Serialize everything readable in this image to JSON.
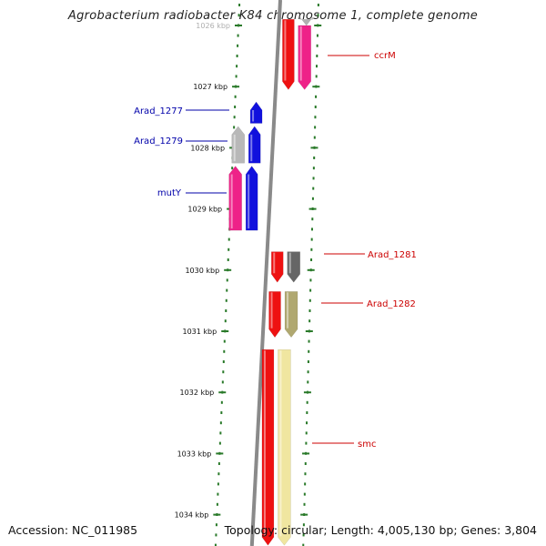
{
  "title": "Agrobacterium radiobacter K84 chromosome 1, complete genome",
  "footer": {
    "accession": "Accession: NC_011985",
    "summary": "Topology: circular; Length: 4,005,130 bp; Genes: 3,804"
  },
  "colors": {
    "scale_tick": "#2a7a2a",
    "backbone": "#8a8a8a",
    "label_blue": "#0000aa",
    "label_red": "#cc0000"
  },
  "scale": {
    "unit": "kbp",
    "ticks": [
      "1026 kbp",
      "1027 kbp",
      "1028 kbp",
      "1029 kbp",
      "1030 kbp",
      "1031 kbp",
      "1032 kbp",
      "1033 kbp",
      "1034 kbp"
    ]
  },
  "genes": [
    {
      "name": "ccrM",
      "strand": "reverse",
      "color": "#ee1111",
      "track": "r1",
      "start_kbp": 1025.9,
      "end_kbp": 1027.05
    },
    {
      "name": "",
      "strand": "reverse",
      "color": "#b0b0b0",
      "track": "r2",
      "start_kbp": 1025.9,
      "end_kbp": 1026.0
    },
    {
      "name": "",
      "strand": "reverse",
      "color": "#ee2288",
      "track": "r2",
      "start_kbp": 1026.0,
      "end_kbp": 1027.05
    },
    {
      "name": "Arad_1277",
      "strand": "forward",
      "color": "#1111dd",
      "track": "f1",
      "start_kbp": 1027.25,
      "end_kbp": 1027.6
    },
    {
      "name": "Arad_1279",
      "strand": "forward",
      "color": "#1111dd",
      "track": "f1",
      "start_kbp": 1027.65,
      "end_kbp": 1028.25
    },
    {
      "name": "",
      "strand": "forward",
      "color": "#b8b8b8",
      "track": "f2",
      "start_kbp": 1027.65,
      "end_kbp": 1028.25
    },
    {
      "name": "mutY",
      "strand": "forward",
      "color": "#1111dd",
      "track": "f1",
      "start_kbp": 1028.3,
      "end_kbp": 1029.35
    },
    {
      "name": "",
      "strand": "forward",
      "color": "#ee2288",
      "track": "f2",
      "start_kbp": 1028.3,
      "end_kbp": 1029.35
    },
    {
      "name": "Arad_1281",
      "strand": "reverse",
      "color": "#ee1111",
      "track": "r1",
      "start_kbp": 1029.7,
      "end_kbp": 1030.2
    },
    {
      "name": "",
      "strand": "reverse",
      "color": "#666666",
      "track": "r2",
      "start_kbp": 1029.7,
      "end_kbp": 1030.2
    },
    {
      "name": "Arad_1282",
      "strand": "reverse",
      "color": "#ee1111",
      "track": "r1",
      "start_kbp": 1030.35,
      "end_kbp": 1031.1
    },
    {
      "name": "",
      "strand": "reverse",
      "color": "#b0a870",
      "track": "r2",
      "start_kbp": 1030.35,
      "end_kbp": 1031.1
    },
    {
      "name": "smc",
      "strand": "reverse",
      "color": "#ee1111",
      "track": "r1",
      "start_kbp": 1031.3,
      "end_kbp": 1034.5
    },
    {
      "name": "",
      "strand": "reverse",
      "color": "#f0e6a0",
      "track": "r2",
      "start_kbp": 1031.3,
      "end_kbp": 1034.5
    }
  ]
}
